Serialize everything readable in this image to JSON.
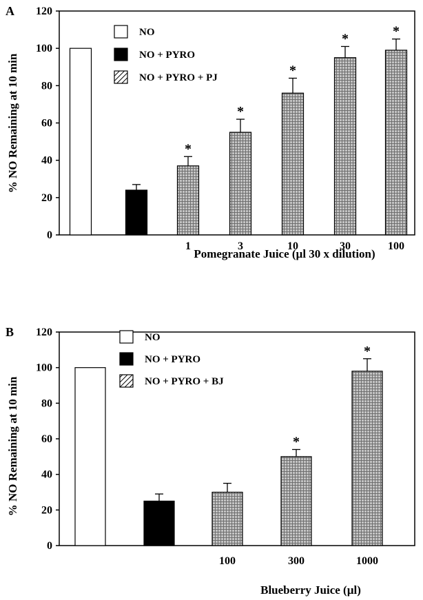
{
  "chart_data": [
    {
      "type": "bar",
      "panel_label": "A",
      "ylabel": "% NO Remaining at 10 min",
      "xlabel": "Pomegranate Juice (µl 30 x dilution)",
      "ylim": [
        0,
        120
      ],
      "yticks": [
        "0",
        "20",
        "40",
        "60",
        "80",
        "100",
        "120"
      ],
      "categories": [
        "",
        "",
        "1",
        "3",
        "10",
        "30",
        "100"
      ],
      "values": [
        100,
        24,
        37,
        55,
        76,
        95,
        99
      ],
      "errors": [
        0,
        3,
        5,
        7,
        8,
        6,
        6
      ],
      "significant": [
        false,
        false,
        true,
        true,
        true,
        true,
        true
      ],
      "significance_marker": "*",
      "bar_series": [
        0,
        1,
        2,
        2,
        2,
        2,
        2
      ],
      "legend": [
        "NO",
        "NO + PYRO",
        "NO + PYRO + PJ"
      ],
      "legend_position": "top-left",
      "grid": false,
      "colors": {
        "series0": "#ffffff",
        "series1": "#000000",
        "series2": "#a8a8a8",
        "axis": "#000000"
      }
    },
    {
      "type": "bar",
      "panel_label": "B",
      "ylabel": "% NO Remaining at 10 min",
      "xlabel": "Blueberry Juice (µl)",
      "ylim": [
        0,
        120
      ],
      "yticks": [
        "0",
        "20",
        "40",
        "60",
        "80",
        "100",
        "120"
      ],
      "categories": [
        "",
        "",
        "100",
        "300",
        "1000"
      ],
      "values": [
        100,
        25,
        30,
        50,
        98
      ],
      "errors": [
        0,
        4,
        5,
        4,
        7
      ],
      "significant": [
        false,
        false,
        false,
        true,
        true
      ],
      "significance_marker": "*",
      "bar_series": [
        0,
        1,
        2,
        2,
        2
      ],
      "legend": [
        "NO",
        "NO + PYRO",
        "NO + PYRO + BJ"
      ],
      "legend_position": "top-left",
      "grid": false,
      "colors": {
        "series0": "#ffffff",
        "series1": "#000000",
        "series2": "#a8a8a8",
        "axis": "#000000"
      }
    }
  ]
}
